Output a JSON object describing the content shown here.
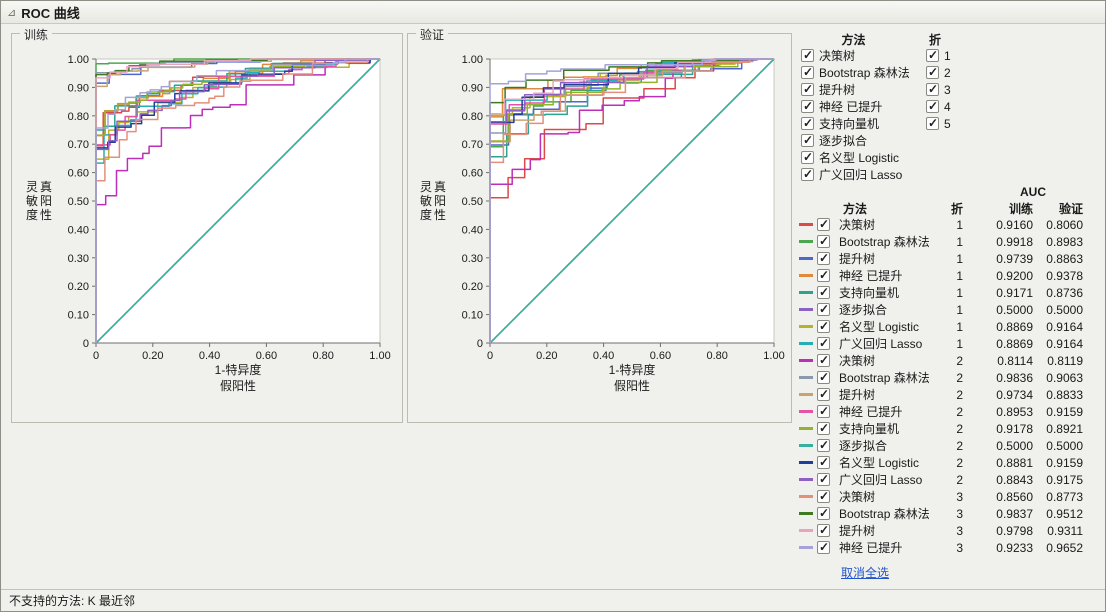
{
  "window": {
    "title": "ROC 曲线"
  },
  "filters": {
    "methods": {
      "title": "方法",
      "items": [
        {
          "label": "决策树",
          "checked": true
        },
        {
          "label": "Bootstrap 森林法",
          "checked": true
        },
        {
          "label": "提升树",
          "checked": true
        },
        {
          "label": "神经 已提升",
          "checked": true
        },
        {
          "label": "支持向量机",
          "checked": true
        },
        {
          "label": "逐步拟合",
          "checked": true
        },
        {
          "label": "名义型 Logistic",
          "checked": true
        },
        {
          "label": "广义回归 Lasso",
          "checked": true
        }
      ]
    },
    "folds": {
      "title": "折",
      "items": [
        {
          "label": "1",
          "checked": true
        },
        {
          "label": "2",
          "checked": true
        },
        {
          "label": "3",
          "checked": true
        },
        {
          "label": "4",
          "checked": true
        },
        {
          "label": "5",
          "checked": true
        }
      ]
    }
  },
  "table": {
    "auc_label": "AUC",
    "columns": [
      "方法",
      "折",
      "训练",
      "验证"
    ],
    "deselect_all": "取消全选"
  },
  "footer": {
    "text": "不支持的方法: K 最近邻"
  },
  "chart_data": {
    "type": "line",
    "subtype": "roc-curves",
    "charts": [
      {
        "title": "训练",
        "auc_field": "train"
      },
      {
        "title": "验证",
        "auc_field": "val"
      }
    ],
    "xlabel_lines": [
      "1-特异度",
      "假阳性"
    ],
    "ylabel_lines": [
      "灵敏度",
      "真阳性"
    ],
    "x_ticks": [
      "0",
      "0.20",
      "0.40",
      "0.60",
      "0.80",
      "1.00"
    ],
    "y_ticks": [
      "0",
      "0.10",
      "0.20",
      "0.30",
      "0.40",
      "0.50",
      "0.60",
      "0.70",
      "0.80",
      "0.90",
      "1.00"
    ],
    "xlim": [
      0,
      1
    ],
    "ylim": [
      0,
      1
    ],
    "diagonal_color": "#A6A695",
    "series": [
      {
        "method": "决策树",
        "fold": "1",
        "color": "#DB4A46",
        "train": "0.9160",
        "val": "0.8060",
        "checked": true
      },
      {
        "method": "Bootstrap 森林法",
        "fold": "1",
        "color": "#4DA64D",
        "train": "0.9918",
        "val": "0.8983",
        "checked": true
      },
      {
        "method": "提升树",
        "fold": "1",
        "color": "#4E66D0",
        "train": "0.9739",
        "val": "0.8863",
        "checked": true
      },
      {
        "method": "神经 已提升",
        "fold": "1",
        "color": "#E08A3C",
        "train": "0.9200",
        "val": "0.9378",
        "checked": true
      },
      {
        "method": "支持向量机",
        "fold": "1",
        "color": "#2BA390",
        "train": "0.9171",
        "val": "0.8736",
        "checked": true
      },
      {
        "method": "逐步拟合",
        "fold": "1",
        "color": "#8A63C0",
        "train": "0.5000",
        "val": "0.5000",
        "checked": true
      },
      {
        "method": "名义型 Logistic",
        "fold": "1",
        "color": "#B8B229",
        "train": "0.8869",
        "val": "0.9164",
        "checked": true
      },
      {
        "method": "广义回归 Lasso",
        "fold": "1",
        "color": "#27AEB4",
        "train": "0.8869",
        "val": "0.9164",
        "checked": true
      },
      {
        "method": "决策树",
        "fold": "2",
        "color": "#BB2FB9",
        "train": "0.8114",
        "val": "0.8119",
        "checked": true
      },
      {
        "method": "Bootstrap 森林法",
        "fold": "2",
        "color": "#8A99AE",
        "train": "0.9836",
        "val": "0.9063",
        "checked": true
      },
      {
        "method": "提升树",
        "fold": "2",
        "color": "#C9A272",
        "train": "0.9734",
        "val": "0.8833",
        "checked": true
      },
      {
        "method": "神经 已提升",
        "fold": "2",
        "color": "#E255A4",
        "train": "0.8953",
        "val": "0.9159",
        "checked": true
      },
      {
        "method": "支持向量机",
        "fold": "2",
        "color": "#93B32E",
        "train": "0.9178",
        "val": "0.8921",
        "checked": true
      },
      {
        "method": "逐步拟合",
        "fold": "2",
        "color": "#38B0A0",
        "train": "0.5000",
        "val": "0.5000",
        "checked": true
      },
      {
        "method": "名义型 Logistic",
        "fold": "2",
        "color": "#203E99",
        "train": "0.8881",
        "val": "0.9159",
        "checked": true
      },
      {
        "method": "广义回归 Lasso",
        "fold": "2",
        "color": "#8F5FC6",
        "train": "0.8843",
        "val": "0.9175",
        "checked": true
      },
      {
        "method": "决策树",
        "fold": "3",
        "color": "#E58F7B",
        "train": "0.8560",
        "val": "0.8773",
        "checked": true
      },
      {
        "method": "Bootstrap 森林法",
        "fold": "3",
        "color": "#3F7A23",
        "train": "0.9837",
        "val": "0.9512",
        "checked": true
      },
      {
        "method": "提升树",
        "fold": "3",
        "color": "#E8A4BC",
        "train": "0.9798",
        "val": "0.9311",
        "checked": true
      },
      {
        "method": "神经 已提升",
        "fold": "3",
        "color": "#A3A3DA",
        "train": "0.9233",
        "val": "0.9652",
        "checked": true
      }
    ]
  }
}
